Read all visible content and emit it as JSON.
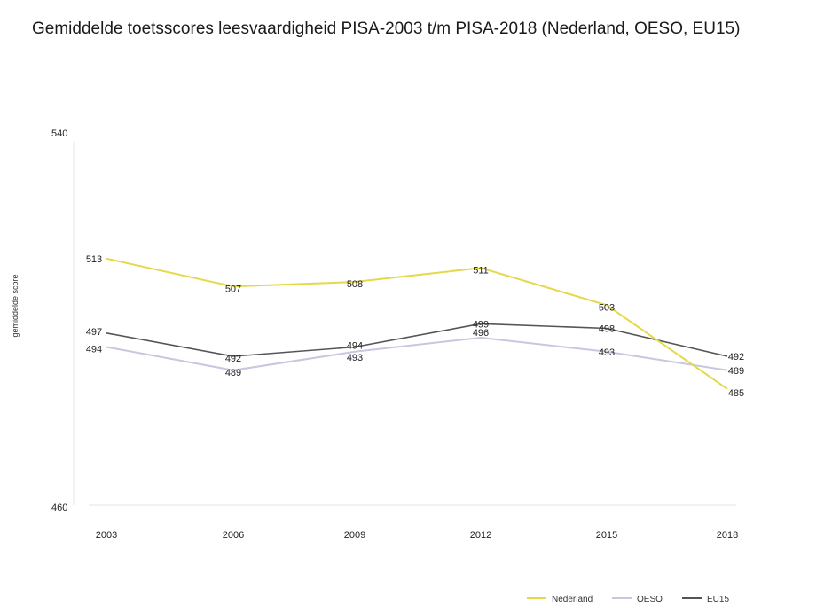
{
  "chart_data": {
    "type": "line",
    "title": "Gemiddelde toetsscores leesvaardigheid PISA-2003 t/m PISA-2018 (Nederland, OESO, EU15)",
    "ylabel": "gemiddelde score",
    "xlabel": "",
    "ylim": [
      460,
      540
    ],
    "yticks": [
      "540",
      "460"
    ],
    "categories": [
      "2003",
      "2006",
      "2009",
      "2012",
      "2015",
      "2018"
    ],
    "series": [
      {
        "name": "Nederland",
        "color": "#e5d84a",
        "values": [
          513,
          507,
          508,
          511,
          503,
          485
        ]
      },
      {
        "name": "OESO",
        "color": "#c9c6e0",
        "values": [
          494,
          489,
          493,
          496,
          493,
          489
        ]
      },
      {
        "name": "EU15",
        "color": "#555555",
        "values": [
          497,
          492,
          494,
          499,
          498,
          492
        ]
      }
    ],
    "legend_position": "bottom-right",
    "grid": false
  }
}
